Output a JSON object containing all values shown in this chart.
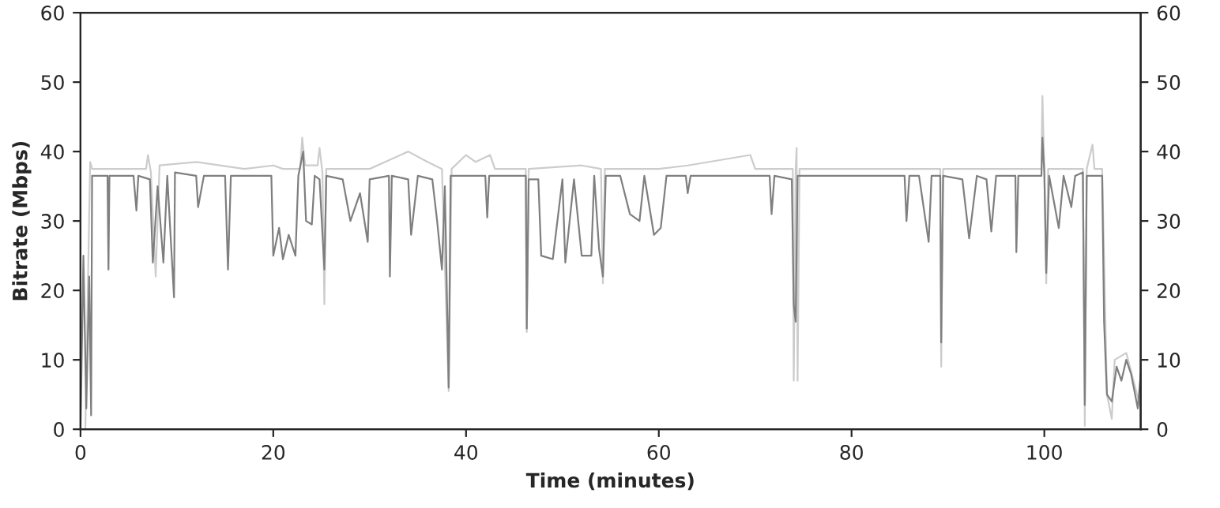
{
  "chart_data": {
    "type": "line",
    "xlabel": "Time (minutes)",
    "ylabel": "Bitrate (Mbps)",
    "xlim": [
      0,
      110
    ],
    "xticks": [
      0,
      20,
      40,
      60,
      80,
      100
    ],
    "ylim": [
      0,
      60
    ],
    "yticks": [
      0,
      10,
      20,
      30,
      40,
      50,
      60
    ],
    "y2lim": [
      0,
      60
    ],
    "y2ticks": [
      0,
      10,
      20,
      30,
      40,
      50,
      60
    ],
    "grid": false,
    "legend": false,
    "line_style": "solid",
    "marker": "none",
    "series": [
      {
        "color": "#cccccc",
        "x": [
          0,
          0.5,
          1,
          1.2,
          6.8,
          7,
          7.3,
          7.8,
          8.2,
          12,
          17,
          20,
          21,
          22.8,
          23,
          23.3,
          24.6,
          24.8,
          25.1,
          25.3,
          25.5,
          30,
          34,
          36,
          37.5,
          38.2,
          38.5,
          40,
          41,
          42.5,
          43,
          46.2,
          46.3,
          46.5,
          52,
          54,
          54.2,
          54.4,
          60,
          63,
          69.5,
          70,
          73.9,
          74,
          74.2,
          74.3,
          74.4,
          74.6,
          80,
          89.2,
          89.3,
          89.5,
          95,
          99.7,
          99.8,
          100,
          100.2,
          100.4,
          104,
          104.2,
          104.4,
          105,
          105.2,
          106,
          106.5,
          107,
          107.3,
          108.5,
          110
        ],
        "values": [
          0,
          0,
          38.5,
          37.5,
          37.5,
          39.5,
          37,
          22,
          38,
          38.5,
          37.5,
          38,
          37.5,
          37.5,
          42,
          38,
          38,
          40.5,
          37,
          18,
          37.5,
          37.5,
          40,
          38.5,
          37.5,
          5.5,
          37.5,
          39.5,
          38.5,
          39.5,
          37.5,
          37.5,
          14,
          37.5,
          38,
          37.5,
          21,
          37.5,
          37.5,
          38,
          39.5,
          37.5,
          37.5,
          7,
          37.5,
          40.5,
          7,
          37.5,
          37.5,
          37.5,
          9,
          37.5,
          37.5,
          37.5,
          48,
          37.5,
          21,
          37.5,
          37.5,
          0.5,
          37.5,
          41,
          37.5,
          37.5,
          5,
          1.5,
          10,
          11,
          3
        ]
      },
      {
        "color": "#7f7f7f",
        "x": [
          0,
          0.3,
          0.6,
          0.9,
          1.1,
          1.2,
          2.8,
          2.9,
          3.0,
          5.5,
          5.8,
          6,
          7.2,
          7.5,
          8,
          8.6,
          9,
          9.7,
          9.8,
          12,
          12.2,
          12.8,
          15,
          15.3,
          15.6,
          19.8,
          20,
          20.6,
          21,
          21.6,
          22.3,
          22.6,
          23.1,
          23.4,
          24,
          24.3,
          24.8,
          25.3,
          25.5,
          27.2,
          28,
          29,
          29.8,
          30,
          32,
          32.1,
          32.3,
          34,
          34.3,
          35,
          36.5,
          37,
          37.5,
          37.8,
          38.2,
          38.4,
          42,
          42.2,
          42.4,
          46.2,
          46.3,
          46.5,
          47.5,
          47.8,
          49,
          50,
          50.3,
          51.2,
          52,
          53,
          53.3,
          53.8,
          54.2,
          54.5,
          56,
          57,
          58,
          58.5,
          59.5,
          60.2,
          60.8,
          62.8,
          63,
          63.3,
          71.5,
          71.7,
          72,
          73.8,
          74,
          74.2,
          74.4,
          85.5,
          85.7,
          86,
          87,
          88,
          88.3,
          89.2,
          89.3,
          89.5,
          91.5,
          92.2,
          93,
          94,
          94.5,
          95,
          97,
          97.1,
          97.3,
          99.7,
          99.8,
          100,
          100.2,
          100.5,
          101.5,
          102,
          102.8,
          103.2,
          104,
          104.2,
          104.4,
          106,
          106.2,
          106.5,
          107,
          107.5,
          108,
          108.5,
          109,
          109.7,
          110
        ],
        "values": [
          0,
          25,
          3,
          22,
          2,
          36.5,
          36.5,
          23,
          36.5,
          36.5,
          31.5,
          36.5,
          36,
          24,
          35,
          24,
          36.5,
          19,
          37,
          36.5,
          32,
          36.5,
          36.5,
          23,
          36.5,
          36.5,
          25,
          29,
          24.5,
          28,
          25,
          36.5,
          40,
          30,
          29.5,
          36.5,
          36,
          23,
          36.5,
          36,
          30,
          34,
          27,
          36,
          36.5,
          22,
          36.5,
          36,
          28,
          36.5,
          36,
          30,
          23,
          35,
          6,
          36.5,
          36.5,
          30.5,
          36.5,
          36.5,
          14.5,
          36,
          36,
          25,
          24.5,
          36,
          24,
          36,
          25,
          25,
          36.5,
          26,
          22,
          36.5,
          36.5,
          31,
          30,
          36.5,
          28,
          29,
          36.5,
          36.5,
          34,
          36.5,
          36.5,
          31,
          36.5,
          36,
          18,
          15.5,
          36.5,
          36.5,
          30,
          36.5,
          36.5,
          27,
          36.5,
          36.5,
          12.5,
          36.5,
          36,
          27.5,
          36.5,
          36,
          28.5,
          36.5,
          36.5,
          25.5,
          36.5,
          36.5,
          42,
          37,
          22.5,
          36.5,
          29,
          36.5,
          32,
          36.5,
          37,
          3.5,
          36.5,
          36.5,
          15.5,
          5,
          4,
          9,
          7,
          10,
          8,
          3,
          8
        ]
      }
    ]
  }
}
